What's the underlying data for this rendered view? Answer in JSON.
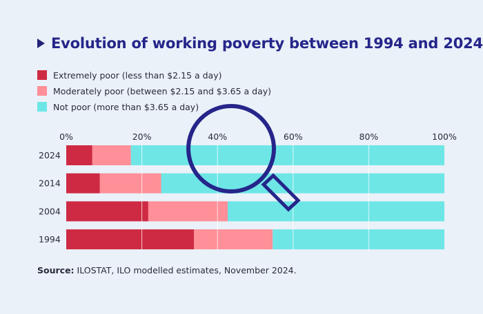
{
  "title": "Evolution of working poverty between 1994 and 2024",
  "legend": [
    {
      "label": "Extremely poor (less than $2.15 a day)",
      "color": "#cf2a43"
    },
    {
      "label": "Moderately poor (between $2.15 and $3.65 a day)",
      "color": "#ff8f98"
    },
    {
      "label": "Not poor (more than $3.65 a day)",
      "color": "#6ee6e6"
    }
  ],
  "source": {
    "label": "Source:",
    "text": "ILOSTAT, ILO modelled estimates, November 2024."
  },
  "chart_data": {
    "type": "bar",
    "orientation": "horizontal",
    "stacked": true,
    "categories": [
      "2024",
      "2014",
      "2004",
      "1994"
    ],
    "series": [
      {
        "name": "Extremely poor (less than $2.15 a day)",
        "color": "#cf2a43",
        "values": [
          6.9,
          8.9,
          21.7,
          33.8
        ]
      },
      {
        "name": "Moderately poor (between $2.15 and $3.65 a day)",
        "color": "#ff8f98",
        "values": [
          10.2,
          16.2,
          21.0,
          20.8
        ]
      },
      {
        "name": "Not poor (more than $3.65 a day)",
        "color": "#6ee6e6",
        "values": [
          82.9,
          74.9,
          57.3,
          45.4
        ]
      }
    ],
    "xlim": [
      0,
      100
    ],
    "xticks": [
      0,
      20,
      40,
      60,
      80,
      100
    ],
    "xtick_labels": [
      "0%",
      "20%",
      "40%",
      "60%",
      "80%",
      "100%"
    ],
    "grid": true,
    "magnifier_color": "#25258a"
  }
}
